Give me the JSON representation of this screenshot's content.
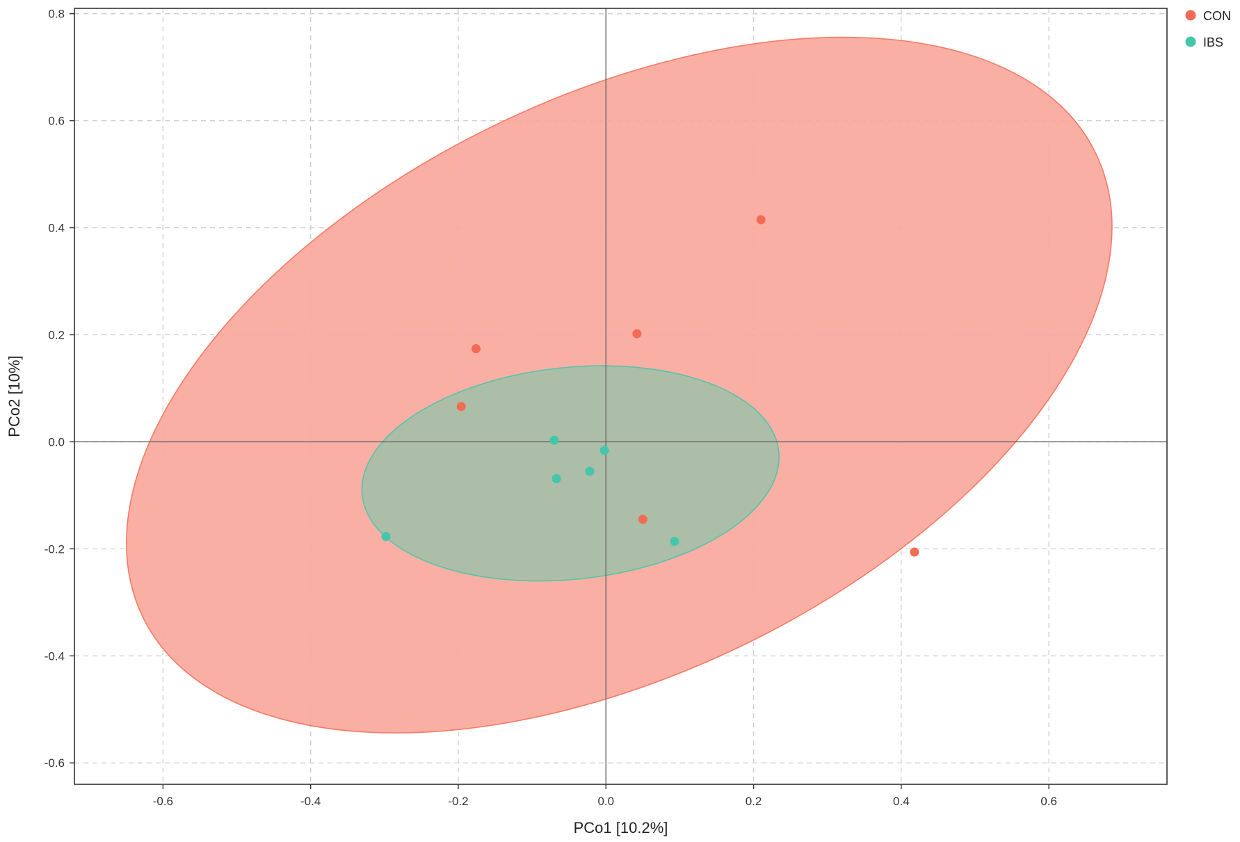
{
  "chart_data": {
    "type": "scatter",
    "title": "",
    "xlabel": "PCo1 [10.2%]",
    "ylabel": "PCo2 [10%]",
    "xlim": [
      -0.72,
      0.76
    ],
    "ylim": [
      -0.64,
      0.81
    ],
    "xticks": [
      -0.6,
      -0.4,
      -0.2,
      0.0,
      0.2,
      0.4,
      0.6
    ],
    "xtick_labels": [
      "-0.6",
      "-0.4",
      "-0.2",
      "0.0",
      "0.2",
      "0.4",
      "0.6"
    ],
    "yticks": [
      -0.6,
      -0.4,
      -0.2,
      0.0,
      0.2,
      0.4,
      0.6,
      0.8
    ],
    "ytick_labels": [
      "-0.6",
      "-0.4",
      "-0.2",
      "0.0",
      "0.2",
      "0.4",
      "0.6",
      "0.8"
    ],
    "grid": true,
    "grid_style": "dashed",
    "zero_lines": true,
    "legend_position": "top-right",
    "series": [
      {
        "name": "CON",
        "color": "#f26b54",
        "fill_color": "#f8a89c",
        "points": [
          {
            "x": 0.21,
            "y": 0.415
          },
          {
            "x": 0.042,
            "y": 0.202
          },
          {
            "x": -0.176,
            "y": 0.174
          },
          {
            "x": -0.196,
            "y": 0.066
          },
          {
            "x": 0.05,
            "y": -0.145
          },
          {
            "x": 0.418,
            "y": -0.206
          }
        ],
        "ellipse": {
          "center": [
            0.018,
            0.106
          ],
          "semi_axis_x_approx": 0.665,
          "semi_axis_y_approx": 0.66,
          "extent_x": [
            -0.65,
            0.685
          ],
          "extent_y": [
            -0.56,
            0.74
          ]
        }
      },
      {
        "name": "IBS",
        "color": "#43c6ac",
        "fill_color": "#a8bfa8",
        "points": [
          {
            "x": -0.07,
            "y": 0.003
          },
          {
            "x": -0.002,
            "y": -0.016
          },
          {
            "x": -0.022,
            "y": -0.055
          },
          {
            "x": -0.067,
            "y": -0.069
          },
          {
            "x": 0.093,
            "y": -0.186
          },
          {
            "x": -0.298,
            "y": -0.177
          }
        ],
        "ellipse": {
          "center": [
            -0.048,
            -0.059
          ],
          "semi_axis_x_approx": 0.283,
          "semi_axis_y_approx": 0.195,
          "extent_x": [
            -0.33,
            0.235
          ],
          "extent_y": [
            -0.26,
            0.142
          ]
        }
      }
    ]
  }
}
